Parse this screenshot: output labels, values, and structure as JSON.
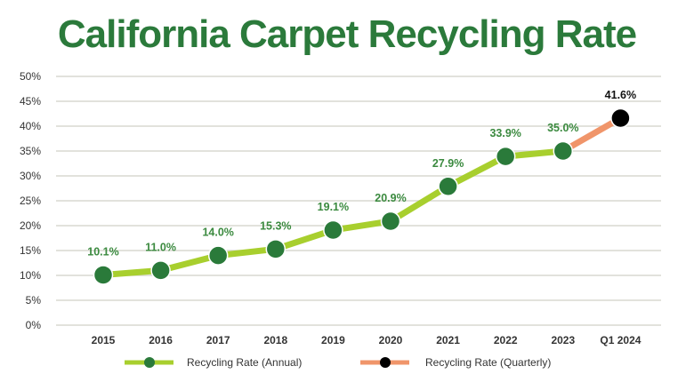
{
  "chart_data": {
    "type": "line",
    "title": "California Carpet Recycling Rate",
    "categories": [
      "2015",
      "2016",
      "2017",
      "2018",
      "2019",
      "2020",
      "2021",
      "2022",
      "2023",
      "Q1 2024"
    ],
    "series": [
      {
        "name": "Recycling Rate (Annual)",
        "color": "#a8cf2e",
        "marker_color": "#2a7a3a",
        "label_color": "#3b8a3f",
        "values": [
          10.1,
          11.0,
          14.0,
          15.3,
          19.1,
          20.9,
          27.9,
          33.9,
          35.0,
          null
        ],
        "labels": [
          "10.1%",
          "11.0%",
          "14.0%",
          "15.3%",
          "19.1%",
          "20.9%",
          "27.9%",
          "33.9%",
          "35.0%",
          null
        ]
      },
      {
        "name": "Recycling Rate (Quarterly)",
        "color": "#f0956a",
        "marker_color": "#000000",
        "label_color": "#111111",
        "values": [
          null,
          null,
          null,
          null,
          null,
          null,
          null,
          null,
          35.0,
          41.6
        ],
        "labels": [
          null,
          null,
          null,
          null,
          null,
          null,
          null,
          null,
          null,
          "41.6%"
        ]
      }
    ],
    "ylim": [
      0,
      50
    ],
    "yticks": [
      "0%",
      "5%",
      "10%",
      "15%",
      "20%",
      "25%",
      "30%",
      "35%",
      "40%",
      "45%",
      "50%"
    ],
    "grid": true,
    "legend": "bottom"
  }
}
